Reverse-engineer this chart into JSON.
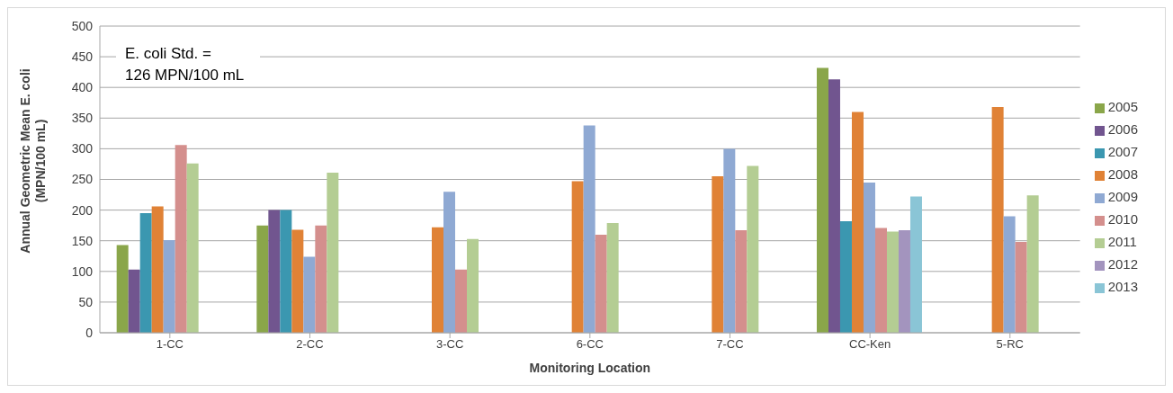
{
  "chart_data": {
    "type": "bar",
    "xlabel": "Monitoring Location",
    "ylabel": "Annual Geometric Mean E. coli\n(MPN/100 mL)",
    "categories": [
      "1-CC",
      "2-CC",
      "3-CC",
      "6-CC",
      "7-CC",
      "CC-Ken",
      "5-RC"
    ],
    "series": [
      {
        "name": "2005",
        "color": "#8aa64a",
        "values": [
          143,
          175,
          null,
          null,
          null,
          432,
          null
        ]
      },
      {
        "name": "2006",
        "color": "#71558f",
        "values": [
          103,
          200,
          null,
          null,
          null,
          413,
          null
        ]
      },
      {
        "name": "2007",
        "color": "#3b97b0",
        "values": [
          195,
          200,
          null,
          null,
          null,
          182,
          null
        ]
      },
      {
        "name": "2008",
        "color": "#e08236",
        "values": [
          206,
          168,
          172,
          247,
          255,
          360,
          368
        ]
      },
      {
        "name": "2009",
        "color": "#8fa9d3",
        "values": [
          151,
          124,
          230,
          338,
          300,
          245,
          190
        ]
      },
      {
        "name": "2010",
        "color": "#d48f8d",
        "values": [
          306,
          175,
          103,
          160,
          167,
          171,
          148
        ]
      },
      {
        "name": "2011",
        "color": "#b4cd93",
        "values": [
          276,
          261,
          153,
          179,
          272,
          165,
          224
        ]
      },
      {
        "name": "2012",
        "color": "#a394be",
        "values": [
          null,
          null,
          null,
          null,
          null,
          167,
          null
        ]
      },
      {
        "name": "2013",
        "color": "#8ac5d6",
        "values": [
          null,
          null,
          null,
          null,
          null,
          222,
          null
        ]
      }
    ],
    "ylim": [
      0,
      500
    ],
    "yticks": [
      0,
      50,
      100,
      150,
      200,
      250,
      300,
      350,
      400,
      450,
      500
    ],
    "grid": "y",
    "legend": "right",
    "annotations": [
      "E. coli Std. =\n126 MPN/100 mL"
    ]
  }
}
